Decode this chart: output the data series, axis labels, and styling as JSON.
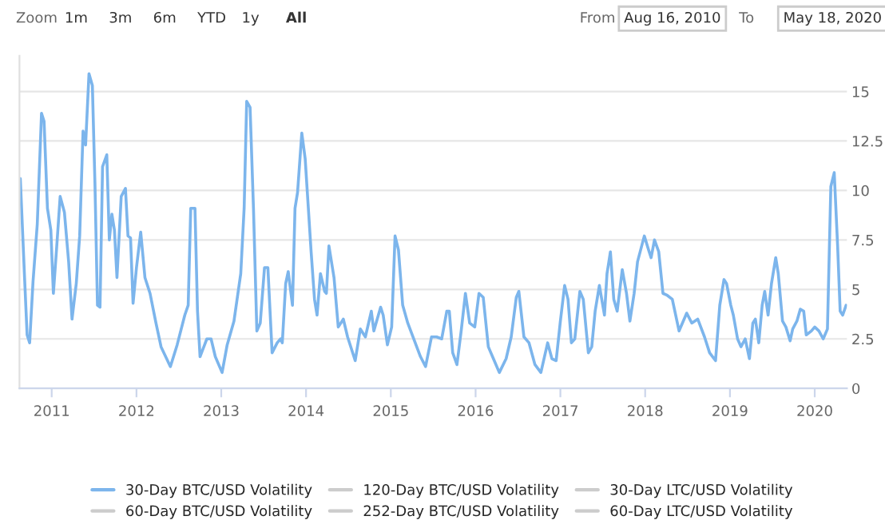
{
  "chart_data": {
    "type": "line",
    "annotations": [
      "Zoom",
      "1m",
      "3m",
      "6m",
      "YTD",
      "1y",
      "All",
      "From",
      "Aug 16, 2010",
      "To",
      "May 18, 2020"
    ],
    "series": [
      {
        "name": "30-Day BTC/USD Volatility",
        "color": "#7cb5ec",
        "x": [
          2010.63,
          2010.68,
          2010.71,
          2010.74,
          2010.78,
          2010.83,
          2010.88,
          2010.91,
          2010.95,
          2010.99,
          2011.02,
          2011.06,
          2011.1,
          2011.15,
          2011.2,
          2011.24,
          2011.29,
          2011.33,
          2011.37,
          2011.4,
          2011.44,
          2011.48,
          2011.51,
          2011.54,
          2011.57,
          2011.6,
          2011.65,
          2011.68,
          2011.71,
          2011.74,
          2011.77,
          2011.82,
          2011.87,
          2011.9,
          2011.93,
          2011.96,
          2012.0,
          2012.05,
          2012.1,
          2012.16,
          2012.23,
          2012.29,
          2012.4,
          2012.48,
          2012.57,
          2012.61,
          2012.64,
          2012.69,
          2012.72,
          2012.75,
          2012.83,
          2012.88,
          2012.93,
          2013.01,
          2013.07,
          2013.15,
          2013.23,
          2013.27,
          2013.3,
          2013.34,
          2013.38,
          2013.42,
          2013.46,
          2013.51,
          2013.55,
          2013.6,
          2013.66,
          2013.7,
          2013.72,
          2013.76,
          2013.79,
          2013.84,
          2013.87,
          2013.9,
          2013.95,
          2013.99,
          2014.06,
          2014.1,
          2014.13,
          2014.17,
          2014.22,
          2014.24,
          2014.27,
          2014.33,
          2014.38,
          2014.44,
          2014.49,
          2014.58,
          2014.64,
          2014.7,
          2014.77,
          2014.8,
          2014.88,
          2014.91,
          2014.96,
          2015.01,
          2015.05,
          2015.09,
          2015.14,
          2015.2,
          2015.27,
          2015.35,
          2015.41,
          2015.48,
          2015.54,
          2015.6,
          2015.66,
          2015.69,
          2015.73,
          2015.78,
          2015.83,
          2015.88,
          2015.93,
          2015.99,
          2016.04,
          2016.09,
          2016.15,
          2016.21,
          2016.28,
          2016.36,
          2016.42,
          2016.48,
          2016.51,
          2016.57,
          2016.63,
          2016.7,
          2016.77,
          2016.85,
          2016.9,
          2016.95,
          2017.0,
          2017.05,
          2017.09,
          2017.13,
          2017.17,
          2017.23,
          2017.27,
          2017.33,
          2017.37,
          2017.41,
          2017.46,
          2017.52,
          2017.55,
          2017.59,
          2017.63,
          2017.67,
          2017.73,
          2017.78,
          2017.82,
          2017.87,
          2017.91,
          2017.99,
          2018.04,
          2018.07,
          2018.11,
          2018.16,
          2018.21,
          2018.26,
          2018.32,
          2018.4,
          2018.49,
          2018.55,
          2018.62,
          2018.7,
          2018.76,
          2018.83,
          2018.88,
          2018.93,
          2018.96,
          2019.01,
          2019.04,
          2019.09,
          2019.13,
          2019.18,
          2019.23,
          2019.27,
          2019.3,
          2019.34,
          2019.38,
          2019.41,
          2019.45,
          2019.49,
          2019.54,
          2019.57,
          2019.62,
          2019.66,
          2019.71,
          2019.74,
          2019.79,
          2019.83,
          2019.87,
          2019.9,
          2019.96,
          2020.0,
          2020.05,
          2020.1,
          2020.15,
          2020.19,
          2020.23,
          2020.27,
          2020.3,
          2020.33,
          2020.37
        ],
        "values": [
          10.6,
          5.6,
          2.7,
          2.3,
          5.4,
          8.3,
          13.9,
          13.5,
          9.1,
          8.0,
          4.8,
          7.2,
          9.7,
          8.9,
          6.4,
          3.5,
          5.3,
          7.7,
          13.0,
          12.3,
          15.9,
          15.3,
          10.4,
          4.2,
          4.1,
          11.2,
          11.8,
          7.5,
          8.8,
          8.0,
          5.6,
          9.7,
          10.1,
          7.7,
          7.6,
          4.3,
          6.1,
          7.9,
          5.6,
          4.8,
          3.3,
          2.1,
          1.1,
          2.2,
          3.7,
          4.2,
          9.1,
          9.1,
          3.9,
          1.6,
          2.5,
          2.5,
          1.6,
          0.8,
          2.2,
          3.4,
          5.8,
          9.1,
          14.5,
          14.2,
          9.1,
          2.9,
          3.3,
          6.1,
          6.1,
          1.8,
          2.3,
          2.5,
          2.3,
          5.3,
          5.9,
          4.2,
          9.1,
          9.9,
          12.9,
          11.6,
          6.9,
          4.5,
          3.7,
          5.8,
          4.9,
          4.8,
          7.2,
          5.6,
          3.1,
          3.5,
          2.6,
          1.4,
          3.0,
          2.6,
          3.9,
          2.9,
          4.1,
          3.7,
          2.2,
          3.1,
          7.7,
          7.0,
          4.2,
          3.3,
          2.5,
          1.6,
          1.1,
          2.6,
          2.6,
          2.5,
          3.9,
          3.9,
          1.8,
          1.2,
          2.9,
          4.8,
          3.3,
          3.1,
          4.8,
          4.6,
          2.1,
          1.5,
          0.8,
          1.5,
          2.6,
          4.6,
          4.9,
          2.6,
          2.3,
          1.2,
          0.8,
          2.3,
          1.5,
          1.4,
          3.4,
          5.2,
          4.5,
          2.3,
          2.5,
          4.9,
          4.5,
          1.8,
          2.1,
          3.9,
          5.2,
          3.7,
          5.8,
          6.9,
          4.5,
          3.9,
          6.0,
          4.8,
          3.4,
          4.8,
          6.4,
          7.7,
          7.0,
          6.6,
          7.5,
          6.9,
          4.8,
          4.7,
          4.5,
          2.9,
          3.8,
          3.3,
          3.5,
          2.6,
          1.8,
          1.4,
          4.2,
          5.5,
          5.3,
          4.2,
          3.7,
          2.5,
          2.1,
          2.5,
          1.5,
          3.3,
          3.5,
          2.3,
          4.2,
          4.9,
          3.7,
          5.3,
          6.6,
          5.8,
          3.4,
          3.1,
          2.4,
          3.0,
          3.4,
          4.0,
          3.9,
          2.7,
          2.9,
          3.1,
          2.9,
          2.5,
          3.0,
          10.2,
          10.9,
          7.2,
          3.9,
          3.7,
          4.2
        ]
      },
      {
        "name": "60-Day BTC/USD Volatility",
        "color": "#cccccc"
      },
      {
        "name": "120-Day BTC/USD Volatility",
        "color": "#cccccc"
      },
      {
        "name": "252-Day BTC/USD Volatility",
        "color": "#cccccc"
      },
      {
        "name": "30-Day LTC/USD Volatility",
        "color": "#cccccc"
      },
      {
        "name": "60-Day LTC/USD Volatility",
        "color": "#cccccc"
      }
    ],
    "xlim": [
      2010.62,
      2020.38
    ],
    "xticks": [
      2011,
      2012,
      2013,
      2014,
      2015,
      2016,
      2017,
      2018,
      2019,
      2020
    ],
    "ylim": [
      0,
      16.8
    ],
    "yticks": [
      0,
      2.5,
      5,
      7.5,
      10,
      12.5,
      15
    ],
    "grid": "y",
    "legend": "bottom",
    "marker": "none",
    "line_style": "solid"
  }
}
